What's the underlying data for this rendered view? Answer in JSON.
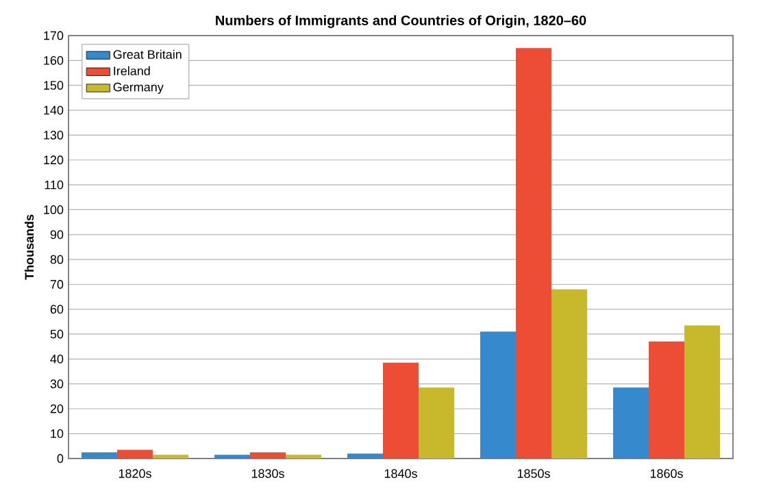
{
  "chart_data": {
    "type": "bar",
    "title": "Numbers of Immigrants and Countries of Origin, 1820–60",
    "ylabel": "Thousands",
    "categories": [
      "1820s",
      "1830s",
      "1840s",
      "1850s",
      "1860s"
    ],
    "series": [
      {
        "name": "Great Britain",
        "color": "#3589cc",
        "values": [
          2.5,
          1.5,
          2,
          51,
          28.5
        ]
      },
      {
        "name": "Ireland",
        "color": "#ee4d35",
        "values": [
          3.5,
          2.5,
          38.5,
          165,
          47
        ]
      },
      {
        "name": "Germany",
        "color": "#c8b82b",
        "values": [
          1.5,
          1.5,
          28.5,
          68,
          53.5
        ]
      }
    ],
    "ylim": [
      0,
      170
    ],
    "yticks": [
      0,
      10,
      20,
      30,
      40,
      50,
      60,
      70,
      80,
      90,
      100,
      110,
      120,
      130,
      140,
      150,
      160,
      170
    ],
    "grid": "y",
    "legend": "top left"
  }
}
